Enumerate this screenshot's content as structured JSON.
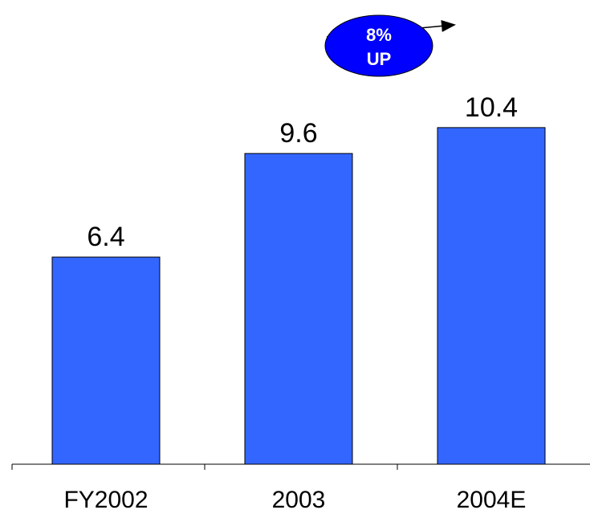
{
  "chart_data": {
    "type": "bar",
    "categories": [
      "FY2002",
      "2003",
      "2004E"
    ],
    "values": [
      6.4,
      9.6,
      10.4
    ],
    "value_labels": [
      "6.4",
      "9.6",
      "10.4"
    ],
    "ylim": [
      0,
      12
    ],
    "grid": false,
    "bar_color": "#3366ff",
    "annotation": {
      "line1": "8%",
      "line2": "UP",
      "fill_color": "#0000ff",
      "from_category": "2003",
      "to_category": "2004E"
    }
  }
}
